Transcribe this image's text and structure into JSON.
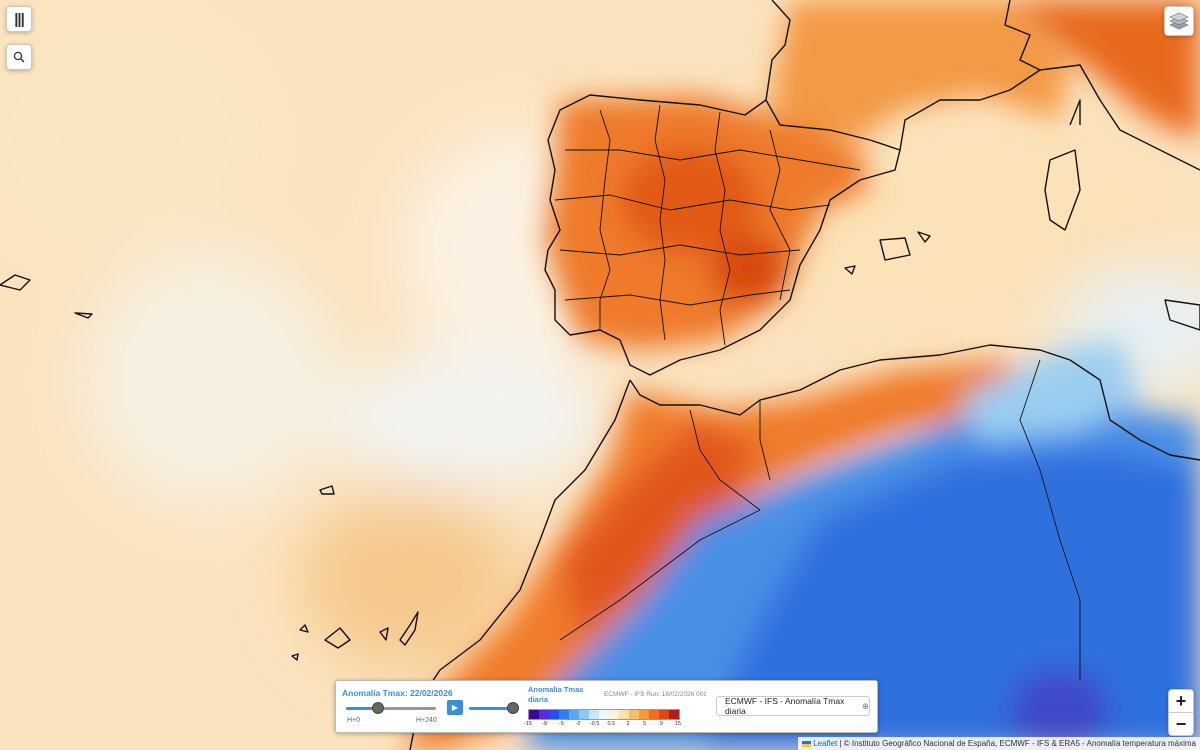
{
  "colors": {
    "warm_light": "#fcebcc",
    "warm_mid": "#f9b466",
    "warm_hot": "#e96a1c",
    "warm_peak": "#c93a0f",
    "cool_light": "#d8ecf5",
    "cool_mid": "#5fa3e8",
    "cool_deep": "#2a6fe0",
    "border": "#111111",
    "accent": "#3b8fd9"
  },
  "controls": {
    "menu_icon": "|||",
    "search_icon": "search-icon",
    "layers_icon": "layers-icon",
    "zoom_in": "+",
    "zoom_out": "−"
  },
  "timeline": {
    "title": "Anomalía Tmax: 22/02/2026",
    "start_label": "H+0",
    "end_label": "H+240",
    "position": 0.35,
    "play_icon": "▶",
    "opacity": 1.0
  },
  "legend": {
    "title": "Anomalía Tmax diaria",
    "run": "ECMWF - IFS Run: 18/02/2026 00z",
    "colors": [
      "#3b0a8c",
      "#5a2bd6",
      "#2950e6",
      "#2f7fe8",
      "#59a8f0",
      "#8ccaf6",
      "#c5e6fb",
      "#eef8fd",
      "#fdf3da",
      "#fce0a6",
      "#f9bd66",
      "#f59a3c",
      "#ec7020",
      "#dc4716",
      "#b41d10"
    ],
    "ticks": [
      "-15",
      "-9",
      "-5",
      "-2",
      "-0.5",
      "0.5",
      "2",
      "5",
      "9",
      "15"
    ]
  },
  "layer_selector": {
    "label": "ECMWF - IFS - Anomalía Tmax diaria",
    "icon": "⊕"
  },
  "attribution": {
    "leaflet": "Leaflet",
    "text": " | © Instituto Geográfico Nacional de España, ECMWF - IFS & ERA5 - Anomalía temperatura máxima"
  }
}
